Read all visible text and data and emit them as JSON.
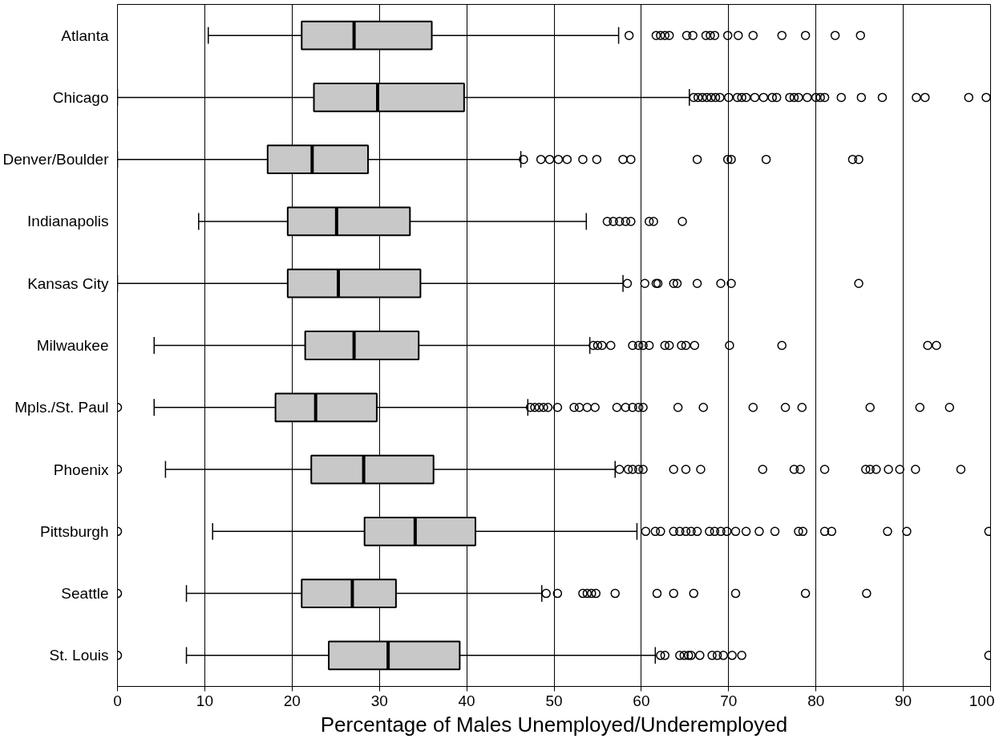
{
  "chart_data": {
    "type": "box",
    "orientation": "horizontal",
    "xlabel": "Percentage of Males Unemployed/Underemployed",
    "xlim": [
      0,
      100
    ],
    "xticks": [
      0,
      10,
      20,
      30,
      40,
      50,
      60,
      70,
      80,
      90,
      100
    ],
    "grid": "x",
    "color": "#c8c8c8",
    "categories": [
      "Atlanta",
      "Chicago",
      "Denver/Boulder",
      "Indianapolis",
      "Kansas City",
      "Milwaukee",
      "Mpls./St. Paul",
      "Phoenix",
      "Pittsburgh",
      "Seattle",
      "St. Louis"
    ],
    "boxes": [
      {
        "low": 10.4,
        "q1": 21.1,
        "median": 27.1,
        "q3": 36.0,
        "high": 57.4,
        "outliers": [
          58.6,
          61.7,
          62.2,
          62.7,
          63.2,
          65.2,
          65.9,
          67.4,
          67.9,
          68.4,
          69.9,
          71.1,
          72.8,
          76.1,
          78.8,
          82.2,
          85.1
        ]
      },
      {
        "low": 0,
        "q1": 22.5,
        "median": 29.8,
        "q3": 39.7,
        "high": 65.5,
        "outliers": [
          66,
          66.5,
          67,
          67.5,
          68,
          68.5,
          69,
          70,
          71,
          71.5,
          72,
          73,
          74,
          75,
          75.5,
          77,
          77.5,
          78,
          79,
          80,
          80.5,
          81,
          82.9,
          85.2,
          87.6,
          91.5,
          92.5,
          97.5,
          99.5
        ]
      },
      {
        "low": 0,
        "q1": 17.2,
        "median": 22.3,
        "q3": 28.7,
        "high": 46.2,
        "outliers": [
          46.5,
          48.5,
          49.5,
          50.5,
          51.5,
          53.3,
          54.9,
          57.9,
          58.8,
          66.4,
          69.9,
          70.3,
          74.3,
          84.2,
          84.9
        ]
      },
      {
        "low": 9.3,
        "q1": 19.5,
        "median": 25.1,
        "q3": 33.5,
        "high": 53.7,
        "outliers": [
          56.1,
          56.8,
          57.5,
          58.2,
          58.8,
          60.9,
          61.4,
          64.7
        ]
      },
      {
        "low": 0,
        "q1": 19.5,
        "median": 25.3,
        "q3": 34.7,
        "high": 57.9,
        "outliers": [
          58.4,
          60.4,
          61.7,
          61.9,
          63.7,
          64.1,
          66.4,
          69.1,
          70.3,
          84.9
        ]
      },
      {
        "low": 4.2,
        "q1": 21.5,
        "median": 27.1,
        "q3": 34.5,
        "high": 54.1,
        "outliers": [
          54.5,
          55.0,
          55.5,
          56.5,
          59.0,
          59.7,
          60.2,
          60.9,
          62.7,
          63.2,
          64.6,
          65.1,
          66.1,
          70.1,
          76.1,
          92.8,
          93.8
        ]
      },
      {
        "low": 4.2,
        "q1": 18.1,
        "median": 22.7,
        "q3": 29.7,
        "high": 47.0,
        "outliers": [
          0,
          47.3,
          47.8,
          48.3,
          48.8,
          49.3,
          50.4,
          52.3,
          52.9,
          53.8,
          54.7,
          57.2,
          58.2,
          59.0,
          59.7,
          60.2,
          64.2,
          67.1,
          72.8,
          76.5,
          78.4,
          86.2,
          91.9,
          95.3
        ]
      },
      {
        "low": 5.5,
        "q1": 22.2,
        "median": 28.2,
        "q3": 36.2,
        "high": 57.0,
        "outliers": [
          0,
          57.5,
          58.5,
          59.0,
          59.7,
          60.2,
          63.7,
          65.1,
          66.8,
          73.9,
          77.5,
          78.2,
          81.0,
          85.7,
          86.2,
          86.9,
          88.3,
          89.6,
          91.4,
          96.6
        ]
      },
      {
        "low": 10.9,
        "q1": 28.3,
        "median": 34.1,
        "q3": 41.0,
        "high": 59.5,
        "outliers": [
          0,
          60.5,
          61.6,
          62.2,
          63.7,
          64.4,
          65.1,
          65.7,
          66.4,
          67.8,
          68.4,
          69.1,
          69.8,
          70.8,
          72.0,
          73.5,
          75.3,
          78.0,
          78.5,
          81.0,
          81.8,
          88.2,
          90.4,
          99.8
        ]
      },
      {
        "low": 7.9,
        "q1": 21.1,
        "median": 26.9,
        "q3": 31.9,
        "high": 48.6,
        "outliers": [
          0,
          49.1,
          50.4,
          53.3,
          53.8,
          54.3,
          54.8,
          57.0,
          61.8,
          63.7,
          66.0,
          70.8,
          78.8,
          85.8
        ]
      },
      {
        "low": 7.9,
        "q1": 24.2,
        "median": 31.0,
        "q3": 39.2,
        "high": 61.6,
        "outliers": [
          0,
          62.2,
          62.7,
          64.4,
          64.9,
          65.4,
          65.7,
          66.7,
          68.1,
          68.7,
          69.4,
          70.4,
          71.5,
          99.8
        ]
      }
    ]
  }
}
